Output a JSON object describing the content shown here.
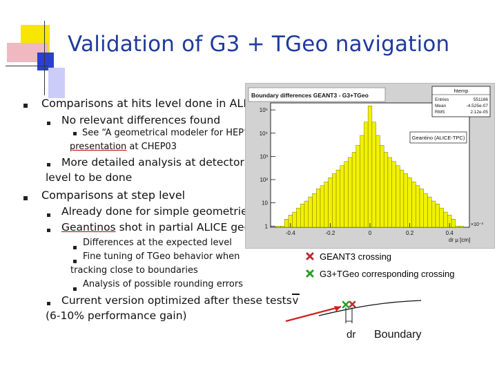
{
  "slide": {
    "title": "Validation of G3 + TGeo navigation"
  },
  "bullets": {
    "b1": "Comparisons at hits level done in ALICE",
    "b1_1": "No relevant differences found",
    "b1_1_1a": "See “A geometrical modeler for HEP”",
    "b1_1_1b_link": "presentation",
    "b1_1_1b_rest": " at CHEP03",
    "b1_2a": "More detailed analysis at detector module",
    "b1_2b": "level to be done",
    "b2": "Comparisons at step level",
    "b2_1": "Already done for simple geometries",
    "b2_2_link": "Geantinos",
    "b2_2_rest": " shot in partial ALICE geometry",
    "b2_2_1": "Differences at the expected level",
    "b2_2_2a": "Fine tuning of TGeo behavior when",
    "b2_2_2b": "tracking close to boundaries",
    "b2_2_3": "Analysis of possible rounding errors",
    "b2_3a": "Current version optimized after these tests",
    "b2_3b": "(6-10% performance gain)"
  },
  "histogram": {
    "title": "Boundary differences GEANT3 - G3+TGeo",
    "stats_name": "htemp",
    "stats": [
      {
        "label": "Entries",
        "value": "551186"
      },
      {
        "label": "Mean",
        "value": "-4.525e-07"
      },
      {
        "label": "RMS",
        "value": "2.12e-05"
      }
    ],
    "legend": "Geantino (ALICE-TPC)",
    "y_ticks": [
      "10⁵",
      "10⁴",
      "10³",
      "10²",
      "10",
      "1"
    ],
    "x_ticks": [
      "-0.4",
      "-0.2",
      "0",
      "0.2",
      "0.4"
    ],
    "x_exponent": "×10⁻³",
    "x_label": "dr µ [cm]",
    "fill_color": "#f2f200",
    "stroke_color": "#5a5a00"
  },
  "chart_data": {
    "type": "bar",
    "title": "Boundary differences GEANT3 - G3+TGeo",
    "xlabel": "dr [cm]",
    "ylabel": "",
    "log_y": true,
    "xlim": [
      -0.5,
      0.5
    ],
    "x_scale_note": "×10⁻³",
    "ylim": [
      1,
      200000
    ],
    "bins_x": [
      -0.46,
      -0.44,
      -0.42,
      -0.4,
      -0.38,
      -0.36,
      -0.34,
      -0.32,
      -0.3,
      -0.28,
      -0.26,
      -0.24,
      -0.22,
      -0.2,
      -0.18,
      -0.16,
      -0.14,
      -0.12,
      -0.1,
      -0.08,
      -0.06,
      -0.04,
      -0.02,
      0.0,
      0.02,
      0.04,
      0.06,
      0.08,
      0.1,
      0.12,
      0.14,
      0.16,
      0.18,
      0.2,
      0.22,
      0.24,
      0.26,
      0.28,
      0.3,
      0.32,
      0.34,
      0.36,
      0.38,
      0.4,
      0.42,
      0.44,
      0.46
    ],
    "values": [
      1,
      1,
      2,
      3,
      4,
      6,
      9,
      12,
      18,
      25,
      40,
      55,
      80,
      120,
      180,
      260,
      400,
      600,
      900,
      1500,
      3000,
      8000,
      30000,
      150000,
      30000,
      8000,
      3000,
      1500,
      900,
      600,
      400,
      260,
      180,
      120,
      80,
      55,
      40,
      25,
      18,
      12,
      9,
      6,
      4,
      3,
      2,
      1,
      1
    ]
  },
  "legend": {
    "g3": "GEANT3 crossing",
    "g3tgeo": "G3+TGeo corresponding crossing",
    "g3_color": "#c0282d",
    "g3tgeo_color": "#20a020"
  },
  "diagram": {
    "v_label": "v",
    "dr_label": "dr",
    "boundary_label": "Boundary"
  }
}
